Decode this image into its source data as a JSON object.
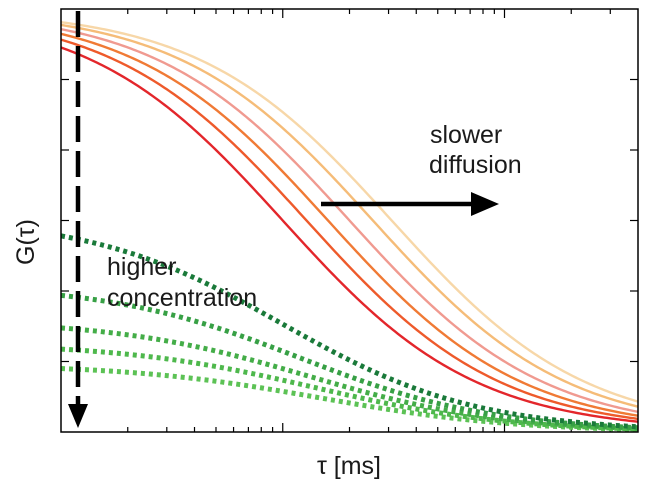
{
  "chart_data": {
    "type": "line",
    "xlabel": "τ [ms]",
    "ylabel": "G(τ)",
    "x_scale": "log",
    "xlim": [
      1,
      400
    ],
    "ylim": [
      0,
      1
    ],
    "grid": false,
    "x_ticks_labeled": false,
    "y_ticks_labeled": false,
    "diffusion_series": [
      {
        "color": "#e3262b",
        "amplitude": 1.0,
        "decay_time": 10
      },
      {
        "color": "#ee5a2b",
        "amplitude": 1.0,
        "decay_time": 12.8
      },
      {
        "color": "#f07a35",
        "amplitude": 1.0,
        "decay_time": 16
      },
      {
        "color": "#f09a90",
        "amplitude": 1.0,
        "decay_time": 20
      },
      {
        "color": "#f5bc78",
        "amplitude": 1.0,
        "decay_time": 25.5
      },
      {
        "color": "#f7d7a8",
        "amplitude": 1.0,
        "decay_time": 31
      }
    ],
    "concentration_series": [
      {
        "color": "#1a7a3a",
        "amplitude": 0.51,
        "decay_time": 10
      },
      {
        "color": "#37a045",
        "amplitude": 0.35,
        "decay_time": 12
      },
      {
        "color": "#44ad48",
        "amplitude": 0.265,
        "decay_time": 13
      },
      {
        "color": "#4eb84c",
        "amplitude": 0.21,
        "decay_time": 14
      },
      {
        "color": "#5cc255",
        "amplitude": 0.16,
        "decay_time": 15
      }
    ],
    "annotations": {
      "slower": "slower",
      "diffusion": "diffusion",
      "higher": "higher",
      "concentration": "concentration"
    }
  }
}
